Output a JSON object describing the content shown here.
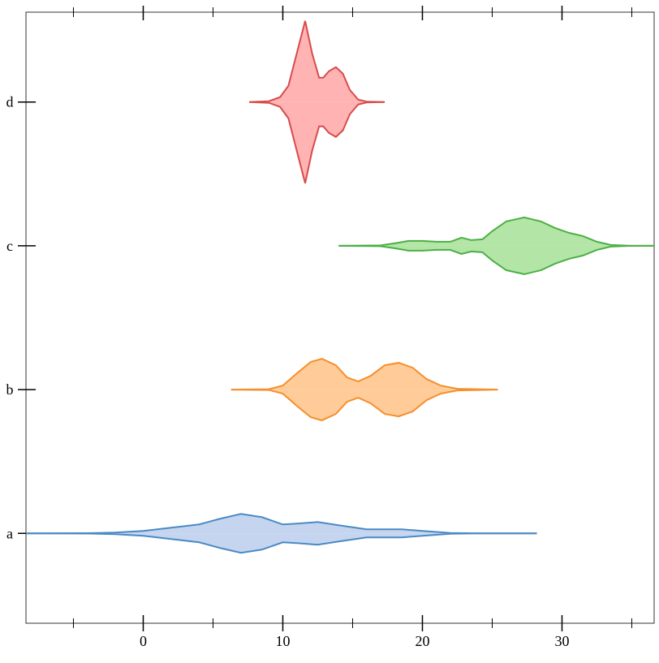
{
  "chart_data": {
    "type": "violin",
    "orientation": "horizontal",
    "categories": [
      "a",
      "b",
      "c",
      "d"
    ],
    "xlim": [
      -8.4,
      36.6
    ],
    "xticks": [
      0,
      10,
      20,
      30
    ],
    "xminorticks": [
      -5,
      5,
      15,
      25,
      35
    ],
    "series": [
      {
        "name": "a",
        "color": "#4a8ac4",
        "fill": "#c5d5ef",
        "x": [
          -8.4,
          -4,
          -2,
          0,
          2,
          4,
          5.5,
          7,
          8.5,
          10,
          11,
          12.5,
          14,
          16,
          18.5,
          20,
          22,
          24,
          28.2
        ],
        "density": [
          0,
          0.002,
          0.01,
          0.03,
          0.07,
          0.11,
          0.18,
          0.24,
          0.2,
          0.11,
          0.12,
          0.14,
          0.1,
          0.05,
          0.05,
          0.03,
          0.005,
          0,
          0
        ]
      },
      {
        "name": "b",
        "color": "#f58f2d",
        "fill": "#ffcc99",
        "x": [
          6.3,
          9,
          10,
          11,
          12,
          12.8,
          13.8,
          14.6,
          15.4,
          16.3,
          17.3,
          18.3,
          19.3,
          20.3,
          21.3,
          22.5,
          25.4
        ],
        "density": [
          0,
          0.005,
          0.05,
          0.2,
          0.34,
          0.38,
          0.3,
          0.15,
          0.1,
          0.17,
          0.3,
          0.33,
          0.27,
          0.13,
          0.05,
          0.01,
          0
        ]
      },
      {
        "name": "c",
        "color": "#4caf45",
        "fill": "#b3e6a6",
        "x": [
          14,
          17,
          18,
          19,
          20,
          21,
          22,
          22.8,
          23.5,
          24.3,
          25,
          26,
          27.3,
          28.5,
          29.5,
          30.5,
          31.5,
          32.5,
          33.5,
          35,
          36.6
        ],
        "density": [
          0,
          0.005,
          0.03,
          0.06,
          0.06,
          0.05,
          0.05,
          0.1,
          0.07,
          0.08,
          0.18,
          0.3,
          0.35,
          0.3,
          0.22,
          0.16,
          0.12,
          0.05,
          0.01,
          0,
          0
        ]
      },
      {
        "name": "d",
        "color": "#d84b4b",
        "fill": "#ffb3b3",
        "x": [
          7.6,
          9,
          9.8,
          10.4,
          11,
          11.6,
          12.1,
          12.6,
          12.9,
          13.3,
          13.8,
          14.3,
          14.8,
          15.4,
          16,
          17.3
        ],
        "density": [
          0,
          0.01,
          0.06,
          0.2,
          0.6,
          1.0,
          0.6,
          0.3,
          0.3,
          0.38,
          0.43,
          0.35,
          0.15,
          0.03,
          0.005,
          0
        ]
      }
    ]
  }
}
